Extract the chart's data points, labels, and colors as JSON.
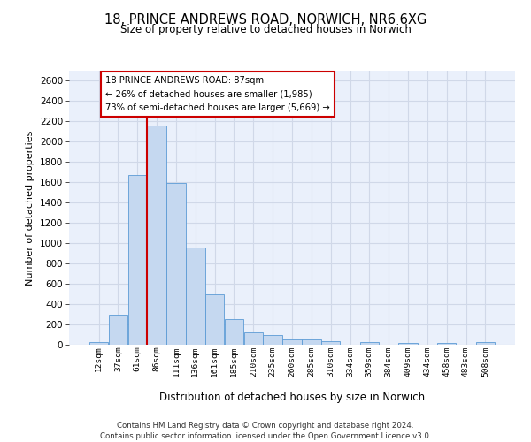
{
  "title_line1": "18, PRINCE ANDREWS ROAD, NORWICH, NR6 6XG",
  "title_line2": "Size of property relative to detached houses in Norwich",
  "xlabel": "Distribution of detached houses by size in Norwich",
  "ylabel": "Number of detached properties",
  "bar_color": "#c5d8f0",
  "bar_edge_color": "#5b9bd5",
  "grid_color": "#d0d8e8",
  "background_color": "#eaf0fb",
  "categories": [
    "12sqm",
    "37sqm",
    "61sqm",
    "86sqm",
    "111sqm",
    "136sqm",
    "161sqm",
    "185sqm",
    "210sqm",
    "235sqm",
    "260sqm",
    "285sqm",
    "310sqm",
    "334sqm",
    "359sqm",
    "384sqm",
    "409sqm",
    "434sqm",
    "458sqm",
    "483sqm",
    "508sqm"
  ],
  "values": [
    25,
    300,
    1670,
    2160,
    1590,
    960,
    500,
    250,
    120,
    100,
    50,
    50,
    35,
    0,
    30,
    0,
    20,
    0,
    20,
    0,
    25
  ],
  "ylim": [
    0,
    2700
  ],
  "yticks": [
    0,
    200,
    400,
    600,
    800,
    1000,
    1200,
    1400,
    1600,
    1800,
    2000,
    2200,
    2400,
    2600
  ],
  "annotation_line1": "18 PRINCE ANDREWS ROAD: 87sqm",
  "annotation_line2": "← 26% of detached houses are smaller (1,985)",
  "annotation_line3": "73% of semi-detached houses are larger (5,669) →",
  "vline_color": "#cc0000",
  "vline_bin_index": 3,
  "annotation_box_color": "#ffffff",
  "annotation_box_edge": "#cc0000",
  "footer_line1": "Contains HM Land Registry data © Crown copyright and database right 2024.",
  "footer_line2": "Contains public sector information licensed under the Open Government Licence v3.0."
}
